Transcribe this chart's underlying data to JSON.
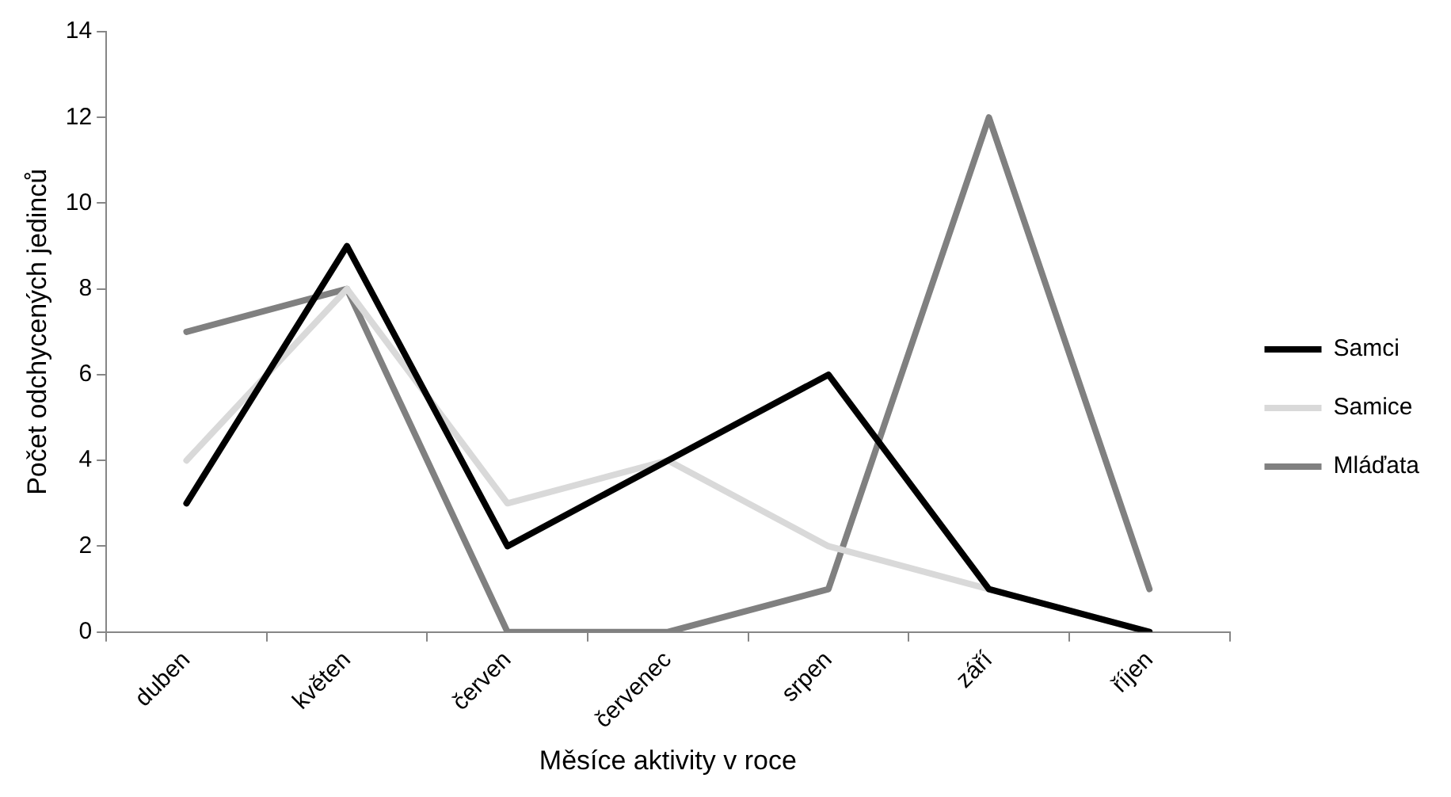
{
  "chart_data": {
    "type": "line",
    "xlabel": "Měsíce aktivity v roce",
    "ylabel": "Počet odchycených jedinců",
    "categories": [
      "duben",
      "květen",
      "červen",
      "červenec",
      "srpen",
      "září",
      "říjen"
    ],
    "series": [
      {
        "name": "Samci",
        "color": "#000000",
        "values": [
          3,
          9,
          2,
          4,
          6,
          1,
          0
        ]
      },
      {
        "name": "Samice",
        "color": "#d9d9d9",
        "values": [
          4,
          8,
          3,
          4,
          2,
          1,
          0
        ]
      },
      {
        "name": "Mláďata",
        "color": "#808080",
        "values": [
          7,
          8,
          0,
          0,
          1,
          12,
          1
        ]
      }
    ],
    "ylim": [
      0,
      14
    ],
    "yticks": [
      0,
      2,
      4,
      6,
      8,
      10,
      12,
      14
    ],
    "grid": false,
    "legend": "right",
    "marker": "none",
    "line_style": "solid"
  }
}
